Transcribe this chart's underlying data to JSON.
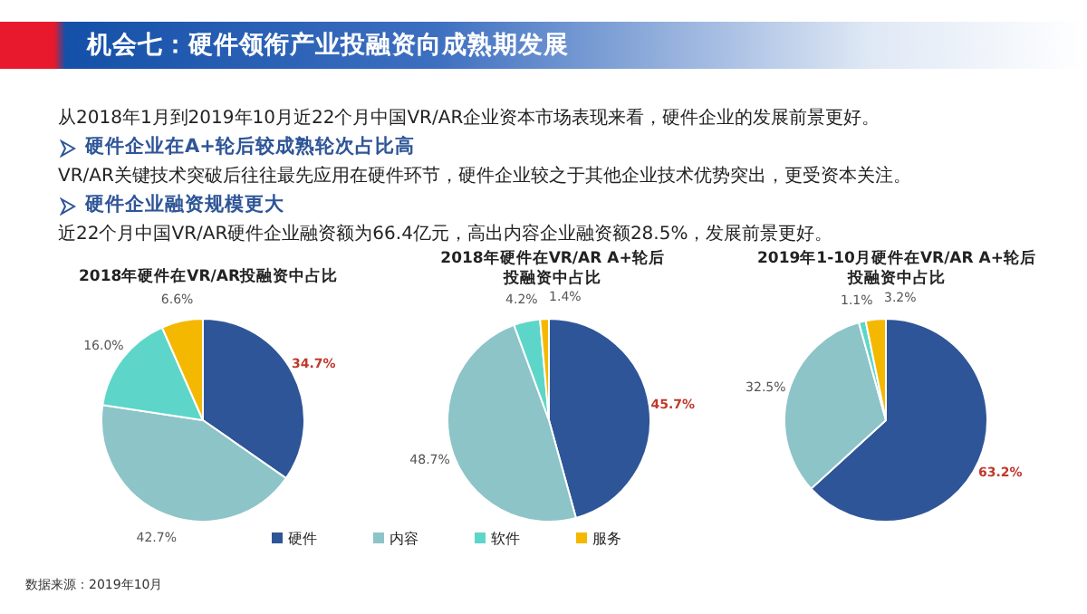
{
  "chart_data": [
    {
      "type": "other",
      "title": "机会七：硬件领衔产业投融资向成熟期发展",
      "annotations": [
        "从2018年1月到2019年10月近22个月中国VR/AR企业资本市场表现来看，硬件企业的发展前景更好。",
        "硬件企业在A+轮后较成熟轮次占比高",
        "VR/AR关键技术突破后往往最先应用在硬件环节，硬件企业较之于其他企业技术优势突出，更受资本关注。",
        "硬件企业融资规模更大",
        "近22个月中国VR/AR硬件企业融资额为66.4亿元，高出内容企业融资额28.5%，发展前景更好。",
        "数据来源：2019年10月"
      ]
    },
    {
      "type": "pie",
      "title": "2018年硬件在VR/AR投融资中占比",
      "categories": [
        "硬件",
        "内容",
        "软件",
        "服务"
      ],
      "values": [
        34.7,
        42.7,
        16.0,
        6.6
      ],
      "value_labels": [
        "34.7%",
        "42.7%",
        "16.0%",
        "6.6%"
      ],
      "colors": [
        "#2e5597",
        "#8cc4c8",
        "#5dd6c9",
        "#f5b800"
      ],
      "legend": "bottom"
    },
    {
      "type": "pie",
      "title": "2018年硬件在VR/AR A+轮后投融资中占比",
      "categories": [
        null,
        null,
        null,
        null
      ],
      "values": [
        45.7,
        48.7,
        4.2,
        1.4
      ],
      "value_labels": [
        "45.7%",
        "48.7%",
        "4.2%",
        "1.4%"
      ],
      "colors": [
        "#2e5597",
        "#8cc4c8",
        "#5dd6c9",
        "#f5b800"
      ]
    },
    {
      "type": "pie",
      "title": "2019年1-10月硬件在VR/AR A+轮后投融资中占比",
      "categories": [
        null,
        null,
        null,
        null
      ],
      "values": [
        63.2,
        32.5,
        1.1,
        3.2
      ],
      "value_labels": [
        "63.2%",
        "32.5%",
        "1.1%",
        "3.2%"
      ],
      "colors": [
        "#2e5597",
        "#8cc4c8",
        "#5dd6c9",
        "#f5b800"
      ]
    }
  ]
}
